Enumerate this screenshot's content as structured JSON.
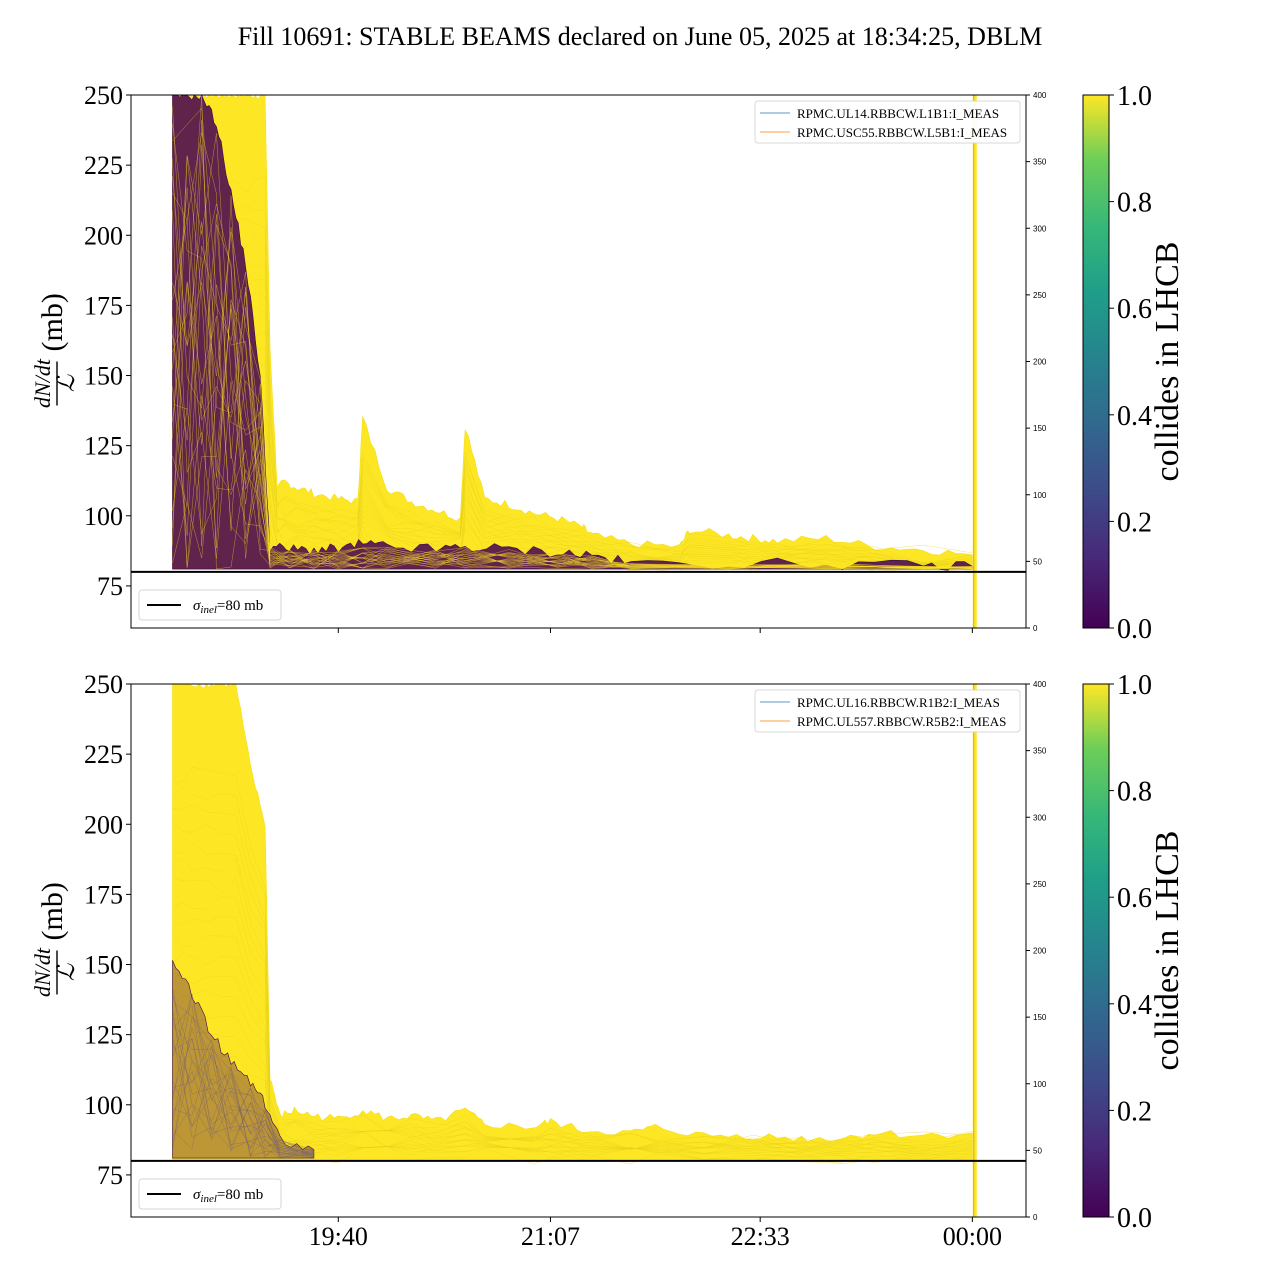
{
  "chart_data": [
    {
      "type": "line",
      "title": "Fill 10691: STABLE BEAMS declared on June 05, 2025 at 18:34:25, DBLM",
      "ylabel_num": "dN/dt",
      "ylabel_den": "ℒ",
      "ylabel_unit": "(mb)",
      "ylim": [
        60,
        250
      ],
      "yticks": [
        75,
        100,
        125,
        150,
        175,
        200,
        225,
        250
      ],
      "y2lim": [
        0,
        400
      ],
      "y2ticks": [
        0,
        50,
        100,
        150,
        200,
        250,
        300,
        350,
        400
      ],
      "xticks": [
        "19:40",
        "21:07",
        "22:33",
        "00:00"
      ],
      "xlim_minutes": [
        1095,
        1462
      ],
      "xtick_minutes": [
        1180,
        1267,
        1353,
        1440
      ],
      "reference": {
        "label": "σ_inel=80 mb",
        "value": 80
      },
      "legend": [
        "RPMC.UL14.RBBCW.L1B1:I_MEAS",
        "RPMC.USC55.RBBCW.L5B1:I_MEAS"
      ],
      "legend_colors": [
        "#1f77b4",
        "#ff7f0e"
      ],
      "colorbar": {
        "label": "collides in LHCB",
        "ticks": [
          "0.0",
          "0.2",
          "0.4",
          "0.6",
          "0.8",
          "1.0"
        ]
      },
      "envelope_yellow": {
        "x_minutes": [
          1112,
          1114,
          1118,
          1122,
          1126,
          1130,
          1134,
          1138,
          1142,
          1146,
          1150,
          1152,
          1155,
          1158,
          1163,
          1170,
          1180,
          1188,
          1190,
          1200,
          1210,
          1220,
          1230,
          1232,
          1240,
          1250,
          1260,
          1270,
          1280,
          1284,
          1300,
          1320,
          1324,
          1340,
          1350,
          1360,
          1380,
          1400,
          1420,
          1440
        ],
        "top": [
          250,
          250,
          250,
          250,
          250,
          250,
          250,
          250,
          250,
          250,
          250,
          160,
          110,
          112,
          110,
          108,
          106,
          105,
          135,
          110,
          105,
          102,
          99,
          132,
          106,
          104,
          101,
          99,
          96,
          93,
          90,
          89,
          95,
          93,
          92,
          91,
          92,
          89,
          88,
          86
        ],
        "bottom": [
          81,
          81,
          81,
          81,
          81,
          81,
          81,
          81,
          81,
          81,
          81,
          81,
          81,
          81,
          81,
          81,
          81,
          81,
          81,
          81,
          81,
          81,
          81,
          81,
          81,
          81,
          81,
          81,
          81,
          81,
          81,
          81,
          81,
          81,
          81,
          81,
          81,
          81,
          81,
          81
        ]
      },
      "envelope_purple": {
        "x_minutes": [
          1112,
          1118,
          1124,
          1130,
          1136,
          1142,
          1148,
          1152,
          1160,
          1170,
          1180,
          1190,
          1200,
          1220,
          1232,
          1250,
          1270,
          1284,
          1300,
          1340,
          1380,
          1420,
          1440
        ],
        "top": [
          250,
          250,
          250,
          240,
          215,
          190,
          150,
          89,
          88,
          88,
          88,
          90,
          89,
          88,
          89,
          88,
          87,
          86,
          83,
          83,
          83,
          82,
          82
        ],
        "bottom": [
          81,
          81,
          81,
          81,
          81,
          81,
          81,
          81,
          81,
          81,
          81,
          81,
          81,
          81,
          81,
          81,
          81,
          81,
          81,
          81,
          81,
          81,
          81
        ]
      },
      "spike_minute": 1441
    },
    {
      "type": "line",
      "ylabel_num": "dN/dt",
      "ylabel_den": "ℒ",
      "ylabel_unit": "(mb)",
      "ylim": [
        60,
        250
      ],
      "yticks": [
        75,
        100,
        125,
        150,
        175,
        200,
        225,
        250
      ],
      "y2lim": [
        0,
        400
      ],
      "y2ticks": [
        0,
        50,
        100,
        150,
        200,
        250,
        300,
        350,
        400
      ],
      "xticks": [
        "19:40",
        "21:07",
        "22:33",
        "00:00"
      ],
      "xlim_minutes": [
        1095,
        1462
      ],
      "xtick_minutes": [
        1180,
        1267,
        1353,
        1440
      ],
      "reference": {
        "label": "σ_inel=80 mb",
        "value": 80
      },
      "legend": [
        "RPMC.UL16.RBBCW.R1B2:I_MEAS",
        "RPMC.UL557.RBBCW.R5B2:I_MEAS"
      ],
      "legend_colors": [
        "#1f77b4",
        "#ff7f0e"
      ],
      "colorbar": {
        "label": "collides in LHCB",
        "ticks": [
          "0.0",
          "0.2",
          "0.4",
          "0.6",
          "0.8",
          "1.0"
        ]
      },
      "envelope_yellow": {
        "x_minutes": [
          1112,
          1116,
          1120,
          1126,
          1132,
          1138,
          1144,
          1150,
          1152,
          1156,
          1162,
          1170,
          1180,
          1190,
          1200,
          1210,
          1220,
          1232,
          1240,
          1260,
          1267,
          1280,
          1300,
          1310,
          1330,
          1350,
          1370,
          1385,
          1400,
          1420,
          1440
        ],
        "top": [
          250,
          250,
          250,
          250,
          250,
          250,
          220,
          200,
          110,
          96,
          98,
          96,
          95,
          98,
          95,
          96,
          94,
          98,
          93,
          92,
          94,
          91,
          90,
          92,
          89,
          89,
          88,
          88,
          90,
          89,
          90
        ],
        "bottom": [
          80,
          80,
          80,
          80,
          80,
          80,
          80,
          80,
          80,
          80,
          80,
          80,
          80,
          80,
          80,
          80,
          80,
          80,
          80,
          80,
          80,
          80,
          80,
          80,
          80,
          80,
          80,
          80,
          80,
          80,
          80
        ]
      },
      "envelope_purple": {
        "x_minutes": [
          1112,
          1120,
          1128,
          1136,
          1144,
          1150,
          1156,
          1170
        ],
        "top": [
          150,
          140,
          125,
          115,
          108,
          100,
          88,
          84
        ],
        "bottom": [
          81,
          81,
          81,
          81,
          81,
          81,
          81,
          81
        ]
      },
      "spike_minute": 1441
    }
  ]
}
